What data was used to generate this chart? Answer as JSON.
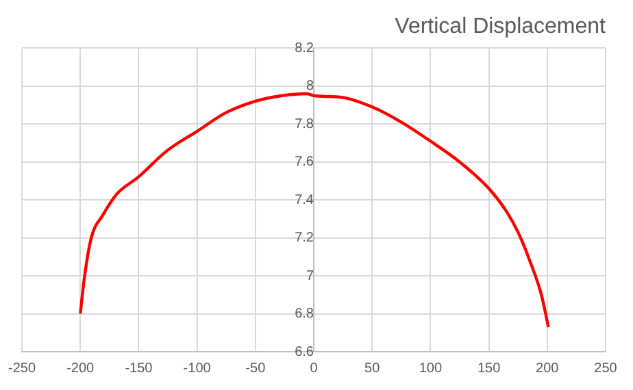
{
  "chart_data": {
    "type": "line",
    "title": "Vertical Displacement",
    "series": [
      {
        "color": "#ff0000",
        "x": [
          -200,
          -196.5,
          -190.6,
          -180.7,
          -168.9,
          -150.4,
          -125.6,
          -100.4,
          -75.2,
          -50.4,
          -27,
          -6,
          0,
          25,
          50,
          75,
          100,
          125,
          150,
          165,
          175,
          185,
          195,
          201
        ],
        "values": [
          6.8,
          6.99,
          7.2,
          7.32,
          7.43,
          7.52,
          7.66,
          7.76,
          7.86,
          7.92,
          7.95,
          7.96,
          7.95,
          7.94,
          7.89,
          7.81,
          7.71,
          7.6,
          7.46,
          7.34,
          7.23,
          7.08,
          6.9,
          6.73
        ]
      }
    ],
    "xlim": [
      -250,
      250
    ],
    "xticks": [
      -250,
      -200,
      -150,
      -100,
      -50,
      0,
      50,
      100,
      150,
      200,
      250
    ],
    "ylim": [
      6.6,
      8.2
    ],
    "yticks": [
      6.6,
      6.8,
      7,
      7.2,
      7.4,
      7.6,
      7.8,
      8,
      8.2
    ],
    "grid": true,
    "legend": false,
    "marker": "none",
    "line_style": "solid"
  }
}
